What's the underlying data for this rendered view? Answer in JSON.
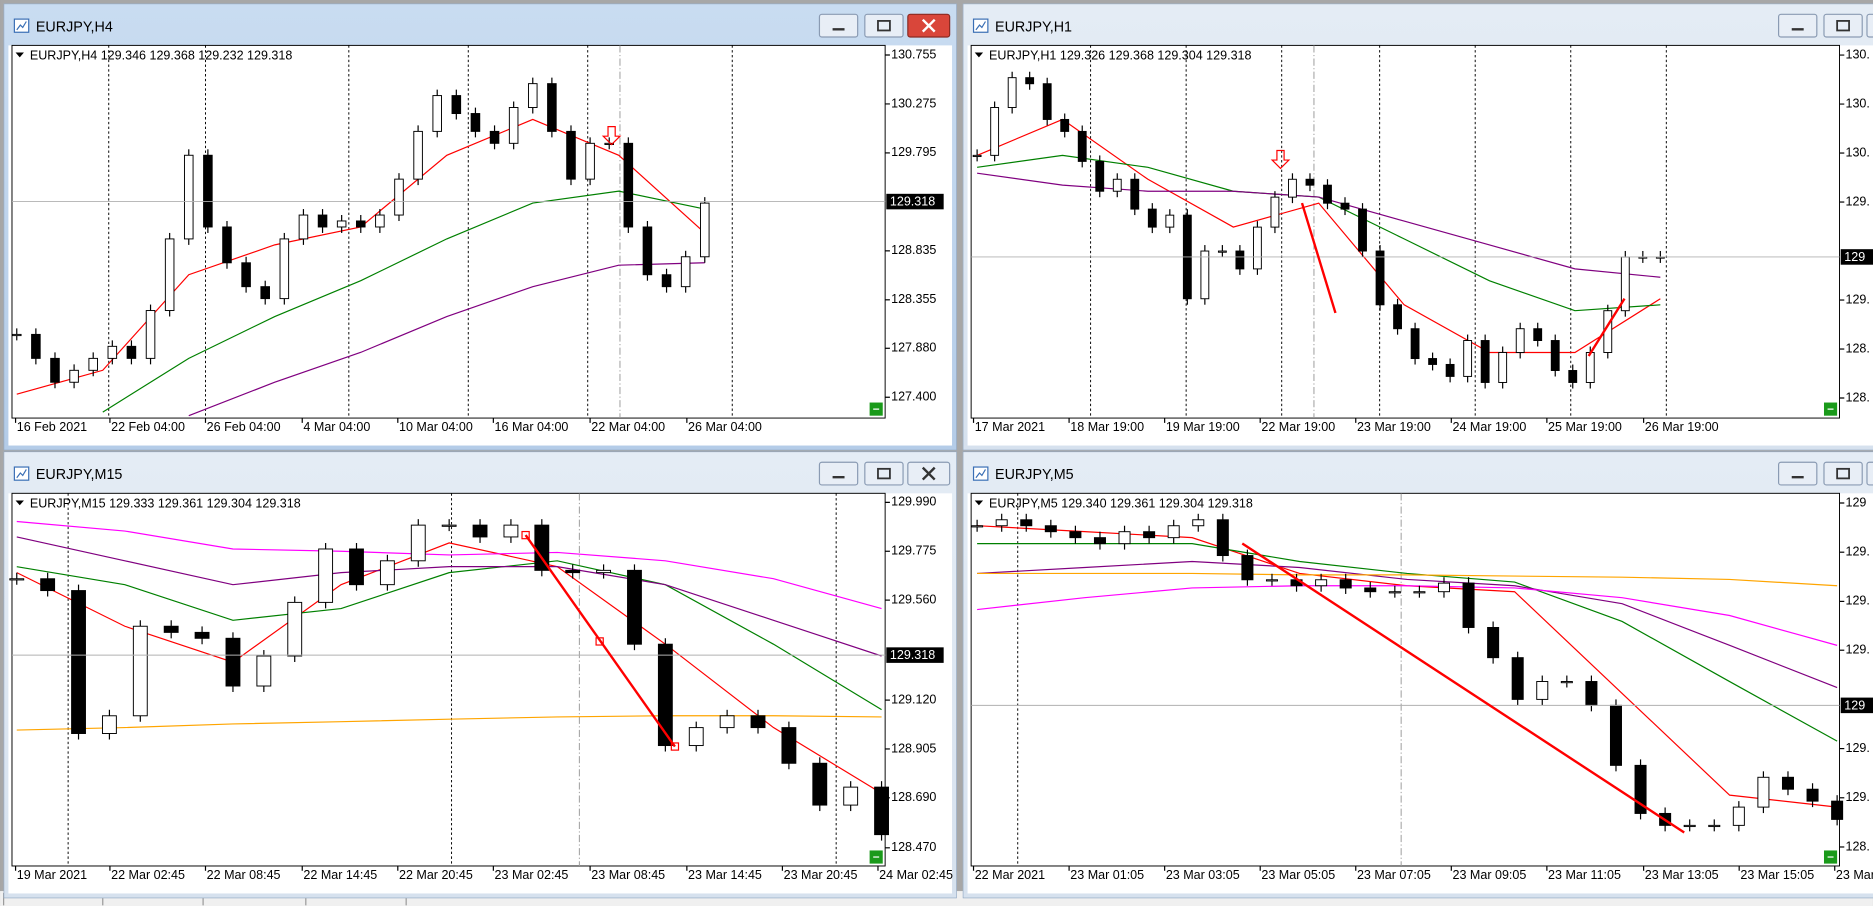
{
  "windows": [
    {
      "title": "EURJPY,H4",
      "header": "EURJPY,H4  129.346 129.368 129.232 129.318",
      "ylim": [
        127.196,
        130.849
      ],
      "yticks": [
        130.755,
        130.275,
        129.795,
        128.835,
        128.355,
        {
          "value": 127.88,
          "label": "127.880"
        },
        {
          "value": 127.4,
          "label": "127.400"
        }
      ],
      "current_price": 129.318,
      "dates": [
        "16 Feb 2021",
        "22 Feb 04:00",
        "26 Feb 04:00",
        "4 Mar 04:00",
        "10 Mar 04:00",
        "16 Mar 04:00",
        "22 Mar 04:00",
        "26 Mar 04:00"
      ],
      "closes": [
        128.016,
        127.781,
        127.547,
        127.664,
        127.781,
        127.899,
        127.781,
        128.25,
        128.952,
        129.772,
        129.069,
        128.718,
        128.484,
        128.367,
        128.952,
        129.186,
        129.069,
        129.128,
        129.069,
        129.186,
        129.538,
        130.006,
        130.357,
        130.181,
        130.006,
        129.889,
        130.24,
        130.474,
        130.006,
        129.538,
        129.889,
        129.889,
        129.069,
        128.601,
        128.484,
        128.777,
        129.303
      ],
      "ma_lines": [
        {
          "color": "#ff0000",
          "values": [
            127.43,
            127.664,
            128.601,
            128.894,
            129.069,
            129.772,
            130.123,
            129.772,
            129.011
          ]
        },
        {
          "color": "#008000",
          "values": [
            null,
            127.255,
            127.781,
            128.191,
            128.542,
            128.952,
            129.303,
            129.42,
            129.245
          ]
        },
        {
          "color": "#800080",
          "values": [
            null,
            null,
            127.22,
            127.547,
            127.84,
            128.191,
            128.484,
            128.695,
            128.718
          ]
        }
      ]
    },
    {
      "title": "EURJPY,H1",
      "header": "EURJPY,H1  129.326 129.368 129.304 129.318",
      "ylim": [
        128.2,
        130.786
      ],
      "yticks": [
        {
          "value": 130.719,
          "label": "130."
        },
        {
          "value": 130.379,
          "label": "130."
        },
        {
          "value": 130.039,
          "label": "130."
        },
        {
          "value": 129.699,
          "label": "129."
        },
        {
          "value": 129.019,
          "label": "129."
        },
        {
          "value": 128.679,
          "label": "128."
        },
        {
          "value": 128.339,
          "label": "128."
        }
      ],
      "current_price": {
        "value": 129.318,
        "label": "129"
      },
      "dates": [
        "17 Mar 2021",
        "18 Mar 19:00",
        "19 Mar 19:00",
        "22 Mar 19:00",
        "23 Mar 19:00",
        "24 Mar 19:00",
        "25 Mar 19:00",
        "26 Mar 19:00"
      ],
      "closes": [
        130.023,
        130.355,
        130.562,
        130.52,
        130.272,
        130.189,
        129.981,
        129.774,
        129.857,
        129.65,
        129.525,
        129.608,
        129.028,
        129.359,
        129.359,
        129.235,
        129.525,
        129.733,
        129.857,
        129.816,
        129.691,
        129.65,
        129.359,
        128.986,
        128.82,
        128.613,
        128.572,
        128.489,
        128.738,
        128.447,
        128.655,
        128.82,
        128.738,
        128.53,
        128.447,
        128.655,
        128.945,
        129.318,
        129.318,
        129.318
      ],
      "ma_lines": [
        {
          "color": "#ff0000",
          "values": [
            130.023,
            130.272,
            129.857,
            129.525,
            129.691,
            128.986,
            128.655,
            128.655,
            129.028
          ]
        },
        {
          "color": "#008000",
          "values": [
            129.94,
            130.023,
            129.94,
            129.774,
            129.733,
            129.443,
            129.152,
            128.945,
            128.986
          ]
        },
        {
          "color": "#800080",
          "values": [
            129.899,
            129.816,
            129.774,
            129.774,
            129.733,
            129.567,
            129.401,
            129.235,
            129.177
          ]
        }
      ]
    },
    {
      "title": "EURJPY,M15",
      "header": "EURJPY,M15  129.333 129.361 129.304 129.318",
      "ylim": [
        128.39,
        130.03
      ],
      "yticks": [
        {
          "value": 129.99,
          "label": "129.990"
        },
        129.775,
        {
          "value": 129.56,
          "label": "129.560"
        },
        {
          "value": 129.12,
          "label": "129.120"
        },
        128.905,
        {
          "value": 128.69,
          "label": "128.690"
        },
        {
          "value": 128.47,
          "label": "128.470"
        }
      ],
      "current_price": 129.318,
      "dates": [
        "19 Mar 2021",
        "22 Mar 02:45",
        "22 Mar 08:45",
        "22 Mar 14:45",
        "22 Mar 20:45",
        "23 Mar 02:45",
        "23 Mar 08:45",
        "23 Mar 14:45",
        "23 Mar 20:45",
        "24 Mar 02:45"
      ],
      "closes": [
        129.654,
        129.602,
        128.973,
        129.051,
        129.445,
        129.418,
        129.392,
        129.182,
        129.314,
        129.55,
        129.785,
        129.628,
        129.733,
        129.89,
        129.89,
        129.838,
        129.89,
        129.691,
        129.681,
        129.691,
        129.366,
        128.92,
        128.999,
        129.051,
        128.999,
        128.842,
        128.658,
        128.737,
        128.528
      ],
      "ma_lines": [
        {
          "color": "#ff0000",
          "values": [
            129.681,
            129.445,
            129.287,
            129.628,
            129.812,
            129.707,
            129.366,
            128.999,
            128.71
          ]
        },
        {
          "color": "#008000",
          "values": [
            129.707,
            129.628,
            129.471,
            129.523,
            129.681,
            129.733,
            129.628,
            129.366,
            129.078
          ]
        },
        {
          "color": "#800080",
          "values": [
            129.838,
            129.733,
            129.628,
            129.681,
            129.707,
            129.707,
            129.628,
            129.471,
            129.314
          ]
        },
        {
          "color": "#ff00ff",
          "values": [
            129.906,
            129.864,
            129.785,
            129.775,
            129.759,
            129.77,
            129.733,
            129.654,
            129.523
          ]
        },
        {
          "color": "#ffa500",
          "values": [
            128.988,
            128.999,
            129.015,
            129.025,
            129.036,
            129.046,
            129.051,
            129.051,
            129.046
          ]
        }
      ]
    },
    {
      "title": "EURJPY,M5",
      "header": "EURJPY,M5  129.340 129.361 129.304 129.318",
      "ylim": [
        128.887,
        129.887
      ],
      "yticks": [
        {
          "value": 129.861,
          "label": "129"
        },
        {
          "value": 129.729,
          "label": "129."
        },
        {
          "value": 129.597,
          "label": "129."
        },
        {
          "value": 129.466,
          "label": "129."
        },
        {
          "value": 129.202,
          "label": "129."
        },
        {
          "value": 129.07,
          "label": "129."
        },
        {
          "value": 128.938,
          "label": "128."
        }
      ],
      "current_price": {
        "value": 129.318,
        "label": "129"
      },
      "dates": [
        "22 Mar 2021",
        "23 Mar 01:05",
        "23 Mar 03:05",
        "23 Mar 05:05",
        "23 Mar 07:05",
        "23 Mar 09:05",
        "23 Mar 11:05",
        "23 Mar 13:05",
        "23 Mar 15:05",
        "23 Mar"
      ],
      "closes": [
        129.8,
        129.816,
        129.8,
        129.784,
        129.768,
        129.752,
        129.784,
        129.768,
        129.8,
        129.816,
        129.72,
        129.655,
        129.655,
        129.639,
        129.655,
        129.633,
        129.623,
        129.623,
        129.623,
        129.646,
        129.527,
        129.446,
        129.334,
        129.382,
        129.382,
        129.318,
        129.157,
        129.028,
        128.996,
        128.996,
        128.996,
        129.045,
        129.125,
        129.093,
        129.061,
        129.012
      ],
      "ma_lines": [
        {
          "color": "#ff0000",
          "values": [
            129.8,
            129.784,
            129.768,
            129.672,
            129.639,
            129.623,
            129.35,
            129.077,
            129.045
          ]
        },
        {
          "color": "#008000",
          "values": [
            129.752,
            129.752,
            129.752,
            129.704,
            129.672,
            129.649,
            129.543,
            129.382,
            129.222
          ]
        },
        {
          "color": "#800080",
          "values": [
            129.672,
            129.688,
            129.704,
            129.688,
            129.656,
            129.639,
            129.591,
            129.479,
            129.366
          ]
        },
        {
          "color": "#ff00ff",
          "values": [
            129.575,
            129.607,
            129.633,
            129.639,
            129.639,
            129.633,
            129.607,
            129.559,
            129.479
          ]
        },
        {
          "color": "#ffa500",
          "values": [
            129.672,
            129.672,
            129.672,
            129.668,
            129.668,
            129.665,
            129.662,
            129.656,
            129.639
          ]
        }
      ]
    }
  ]
}
